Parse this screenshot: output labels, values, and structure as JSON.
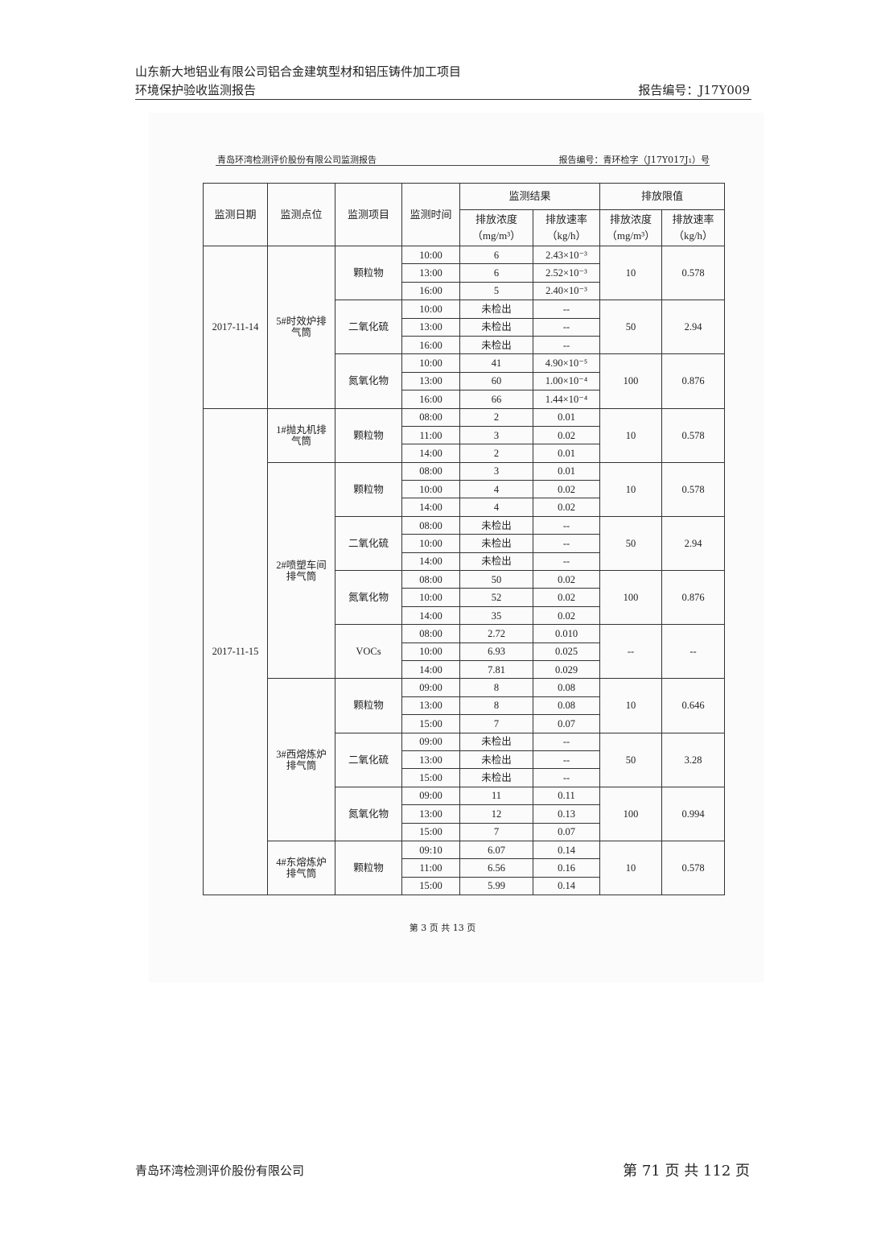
{
  "header": {
    "line1": "山东新大地铝业有限公司铝合金建筑型材和铝压铸件加工项目",
    "line2": "环境保护验收监测报告",
    "report_no": "报告编号：J17Y009"
  },
  "sub_header": {
    "left": "青岛环湾检测评价股份有限公司监测报告",
    "right": "报告编号：青环检字（J17Y017J₁）号"
  },
  "table": {
    "headers": {
      "date": "监测日期",
      "point": "监测点位",
      "item": "监测项目",
      "time": "监测时间",
      "results": "监测结果",
      "limits": "排放限值",
      "conc": "排放浓度",
      "conc_unit": "（mg/m³）",
      "rate": "排放速率",
      "rate_unit": "（kg/h）"
    },
    "groups": [
      {
        "date": "2017-11-14",
        "points": [
          {
            "name": "5#时效炉排气筒",
            "items": [
              {
                "item": "颗粒物",
                "limit_conc": "10",
                "limit_rate": "0.578",
                "rows": [
                  [
                    "10:00",
                    "6",
                    "2.43×10⁻³"
                  ],
                  [
                    "13:00",
                    "6",
                    "2.52×10⁻³"
                  ],
                  [
                    "16:00",
                    "5",
                    "2.40×10⁻³"
                  ]
                ]
              },
              {
                "item": "二氧化硫",
                "limit_conc": "50",
                "limit_rate": "2.94",
                "rows": [
                  [
                    "10:00",
                    "未检出",
                    "--"
                  ],
                  [
                    "13:00",
                    "未检出",
                    "--"
                  ],
                  [
                    "16:00",
                    "未检出",
                    "--"
                  ]
                ]
              },
              {
                "item": "氮氧化物",
                "limit_conc": "100",
                "limit_rate": "0.876",
                "rows": [
                  [
                    "10:00",
                    "41",
                    "4.90×10⁻⁵"
                  ],
                  [
                    "13:00",
                    "60",
                    "1.00×10⁻⁴"
                  ],
                  [
                    "16:00",
                    "66",
                    "1.44×10⁻⁴"
                  ]
                ]
              }
            ]
          }
        ]
      },
      {
        "date": "2017-11-15",
        "points": [
          {
            "name": "1#抛丸机排气筒",
            "items": [
              {
                "item": "颗粒物",
                "limit_conc": "10",
                "limit_rate": "0.578",
                "rows": [
                  [
                    "08:00",
                    "2",
                    "0.01"
                  ],
                  [
                    "11:00",
                    "3",
                    "0.02"
                  ],
                  [
                    "14:00",
                    "2",
                    "0.01"
                  ]
                ]
              }
            ]
          },
          {
            "name": "2#喷塑车间排气筒",
            "items": [
              {
                "item": "颗粒物",
                "limit_conc": "10",
                "limit_rate": "0.578",
                "rows": [
                  [
                    "08:00",
                    "3",
                    "0.01"
                  ],
                  [
                    "10:00",
                    "4",
                    "0.02"
                  ],
                  [
                    "14:00",
                    "4",
                    "0.02"
                  ]
                ]
              },
              {
                "item": "二氧化硫",
                "limit_conc": "50",
                "limit_rate": "2.94",
                "rows": [
                  [
                    "08:00",
                    "未检出",
                    "--"
                  ],
                  [
                    "10:00",
                    "未检出",
                    "--"
                  ],
                  [
                    "14:00",
                    "未检出",
                    "--"
                  ]
                ]
              },
              {
                "item": "氮氧化物",
                "limit_conc": "100",
                "limit_rate": "0.876",
                "rows": [
                  [
                    "08:00",
                    "50",
                    "0.02"
                  ],
                  [
                    "10:00",
                    "52",
                    "0.02"
                  ],
                  [
                    "14:00",
                    "35",
                    "0.02"
                  ]
                ]
              },
              {
                "item": "VOCs",
                "limit_conc": "--",
                "limit_rate": "--",
                "rows": [
                  [
                    "08:00",
                    "2.72",
                    "0.010"
                  ],
                  [
                    "10:00",
                    "6.93",
                    "0.025"
                  ],
                  [
                    "14:00",
                    "7.81",
                    "0.029"
                  ]
                ]
              }
            ]
          },
          {
            "name": "3#西熔炼炉排气筒",
            "items": [
              {
                "item": "颗粒物",
                "limit_conc": "10",
                "limit_rate": "0.646",
                "rows": [
                  [
                    "09:00",
                    "8",
                    "0.08"
                  ],
                  [
                    "13:00",
                    "8",
                    "0.08"
                  ],
                  [
                    "15:00",
                    "7",
                    "0.07"
                  ]
                ]
              },
              {
                "item": "二氧化硫",
                "limit_conc": "50",
                "limit_rate": "3.28",
                "rows": [
                  [
                    "09:00",
                    "未检出",
                    "--"
                  ],
                  [
                    "13:00",
                    "未检出",
                    "--"
                  ],
                  [
                    "15:00",
                    "未检出",
                    "--"
                  ]
                ]
              },
              {
                "item": "氮氧化物",
                "limit_conc": "100",
                "limit_rate": "0.994",
                "rows": [
                  [
                    "09:00",
                    "11",
                    "0.11"
                  ],
                  [
                    "13:00",
                    "12",
                    "0.13"
                  ],
                  [
                    "15:00",
                    "7",
                    "0.07"
                  ]
                ]
              }
            ]
          },
          {
            "name": "4#东熔炼炉排气筒",
            "items": [
              {
                "item": "颗粒物",
                "limit_conc": "10",
                "limit_rate": "0.578",
                "rows": [
                  [
                    "09:10",
                    "6.07",
                    "0.14"
                  ],
                  [
                    "11:00",
                    "6.56",
                    "0.16"
                  ],
                  [
                    "15:00",
                    "5.99",
                    "0.14"
                  ]
                ]
              }
            ]
          }
        ]
      }
    ]
  },
  "inner_page": "第 3 页 共 13 页",
  "footer": {
    "company": "青岛环湾检测评价股份有限公司",
    "page": "第 71 页 共 112 页"
  }
}
